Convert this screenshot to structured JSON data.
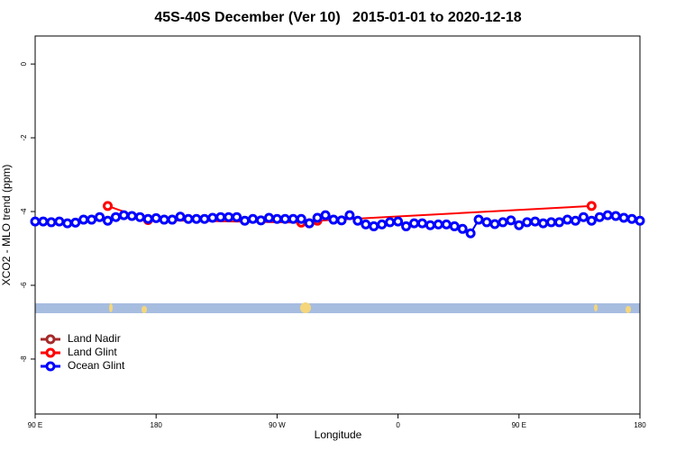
{
  "chart_data": {
    "type": "line",
    "title": "45S-40S December (Ver 10)   2015-01-01 to 2020-12-18",
    "x_label": "Longitude",
    "y_label": "XCO2 - MLO trend (ppm)",
    "xlim": [
      90,
      540
    ],
    "xticks": [
      {
        "value": 90,
        "label": "90 E"
      },
      180,
      {
        "value": 270,
        "label": "90 W"
      },
      {
        "value": 360,
        "label": "0"
      },
      {
        "value": 450,
        "label": "90 E"
      },
      {
        "value": 540,
        "label": "180"
      }
    ],
    "ylim": [
      0.76,
      -9.49
    ],
    "yticks": [
      0,
      -2,
      -4,
      -6,
      -8
    ],
    "legend": "bottom-left",
    "series": [
      {
        "name": "Land Nadir",
        "color": "#a52a2a",
        "x": [],
        "values": []
      },
      {
        "name": "Land Glint",
        "color": "#ff0000",
        "x": [
          144,
          174,
          288,
          294,
          300,
          504
        ],
        "values": [
          -3.85,
          -4.23,
          -4.3,
          -4.32,
          -4.25,
          -3.85
        ]
      },
      {
        "name": "Ocean Glint",
        "color": "#0000ff",
        "x": [
          90,
          96,
          102,
          108,
          114,
          120,
          126,
          132,
          138,
          144,
          150,
          156,
          162,
          168,
          174,
          180,
          186,
          192,
          198,
          204,
          210,
          216,
          222,
          228,
          234,
          240,
          246,
          252,
          258,
          264,
          270,
          276,
          282,
          288,
          294,
          300,
          306,
          312,
          318,
          324,
          330,
          336,
          342,
          348,
          354,
          360,
          366,
          372,
          378,
          384,
          390,
          396,
          402,
          408,
          414,
          420,
          426,
          432,
          438,
          444,
          450,
          456,
          462,
          468,
          474,
          480,
          486,
          492,
          498,
          504,
          510,
          516,
          522,
          528,
          534,
          540
        ],
        "values": [
          -4.27,
          -4.27,
          -4.29,
          -4.27,
          -4.32,
          -4.3,
          -4.22,
          -4.22,
          -4.15,
          -4.25,
          -4.15,
          -4.1,
          -4.12,
          -4.15,
          -4.2,
          -4.18,
          -4.22,
          -4.22,
          -4.14,
          -4.2,
          -4.2,
          -4.2,
          -4.17,
          -4.15,
          -4.15,
          -4.15,
          -4.25,
          -4.2,
          -4.24,
          -4.17,
          -4.2,
          -4.2,
          -4.2,
          -4.2,
          -4.32,
          -4.17,
          -4.1,
          -4.22,
          -4.24,
          -4.1,
          -4.25,
          -4.35,
          -4.4,
          -4.35,
          -4.29,
          -4.27,
          -4.4,
          -4.32,
          -4.32,
          -4.37,
          -4.35,
          -4.35,
          -4.4,
          -4.47,
          -4.59,
          -4.22,
          -4.29,
          -4.34,
          -4.29,
          -4.24,
          -4.37,
          -4.29,
          -4.27,
          -4.32,
          -4.29,
          -4.29,
          -4.22,
          -4.25,
          -4.15,
          -4.25,
          -4.15,
          -4.1,
          -4.12,
          -4.17,
          -4.2,
          -4.25
        ]
      }
    ]
  }
}
